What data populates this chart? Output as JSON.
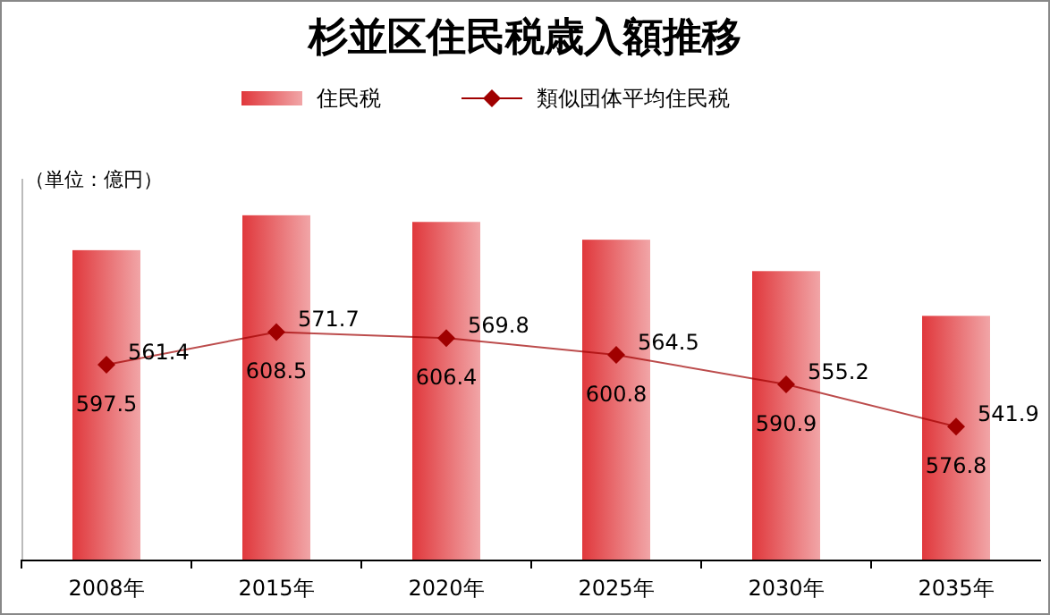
{
  "chart_data": {
    "type": "bar",
    "title": "杉並区住民税歳入額推移",
    "annotations": [
      "（単位：億円）"
    ],
    "categories": [
      "2008年",
      "2015年",
      "2020年",
      "2025年",
      "2030年",
      "2035年"
    ],
    "series": [
      {
        "name": "住民税",
        "color": "#e0383c",
        "values": [
          597.5,
          608.5,
          606.4,
          600.8,
          590.9,
          576.8
        ]
      },
      {
        "name": "類似団体平均住民税",
        "type": "line",
        "color": "#a00000",
        "marker": "diamond",
        "values": [
          561.4,
          571.7,
          569.8,
          564.5,
          555.2,
          541.9
        ]
      }
    ],
    "ylim": [
      500,
      620
    ],
    "tick_labels": "x",
    "data_labels": true,
    "legend": "top"
  }
}
